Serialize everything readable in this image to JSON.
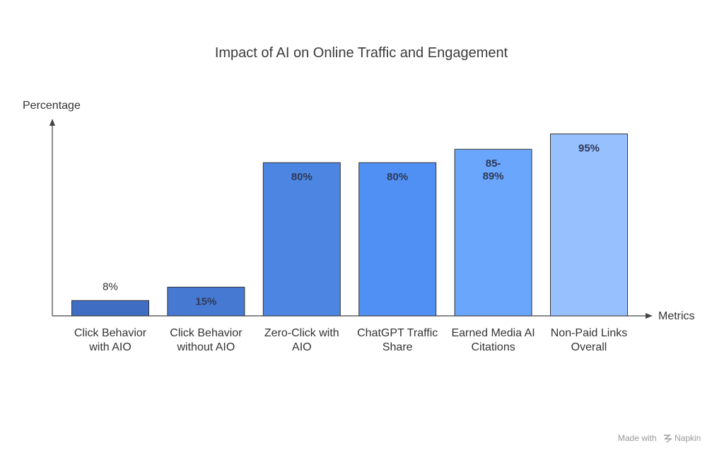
{
  "chart_data": {
    "type": "bar",
    "title": "Impact of AI on Online Traffic and Engagement",
    "ylabel": "Percentage",
    "xlabel": "Metrics",
    "ylim": [
      0,
      100
    ],
    "grid": false,
    "categories": [
      [
        "Click Behavior",
        "with AIO"
      ],
      [
        "Click Behavior",
        "without AIO"
      ],
      [
        "Zero-Click with",
        "AIO"
      ],
      [
        "ChatGPT Traffic",
        "Share"
      ],
      [
        "Earned Media AI",
        "Citations"
      ],
      [
        "Non-Paid Links",
        "Overall"
      ]
    ],
    "values": [
      8,
      15,
      80,
      80,
      87,
      95
    ],
    "data_labels": [
      [
        "8%"
      ],
      [
        "15%"
      ],
      [
        "80%"
      ],
      [
        "80%"
      ],
      [
        "85-",
        "89%"
      ],
      [
        "95%"
      ]
    ],
    "colors": [
      "#3f6dc4",
      "#4679d2",
      "#4d86e2",
      "#5090f4",
      "#69a6fc",
      "#97c0ff"
    ]
  },
  "footer": {
    "watermark": "Made with",
    "brand": "Napkin"
  }
}
